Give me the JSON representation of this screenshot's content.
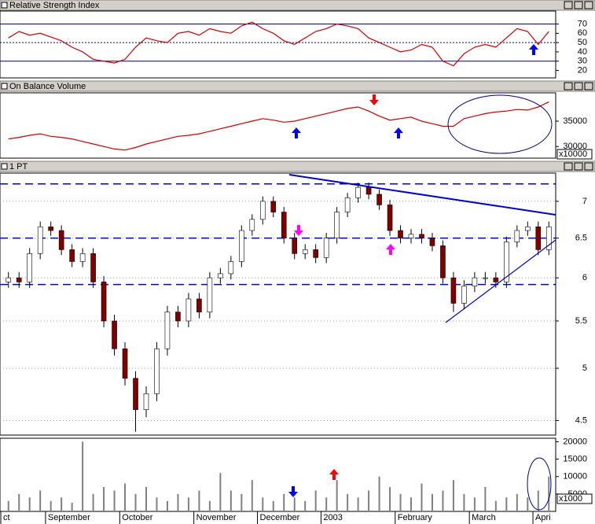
{
  "chart_data": [
    {
      "type": "line",
      "title": "Relative Strength Index",
      "color": "#cc0000",
      "values": [
        55,
        62,
        58,
        60,
        56,
        52,
        45,
        40,
        32,
        30,
        28,
        32,
        45,
        55,
        52,
        50,
        60,
        62,
        58,
        65,
        62,
        60,
        68,
        72,
        65,
        60,
        52,
        48,
        55,
        62,
        65,
        70,
        68,
        65,
        55,
        50,
        45,
        40,
        42,
        48,
        45,
        30,
        25,
        38,
        45,
        48,
        45,
        55,
        65,
        62,
        48,
        62
      ],
      "ylim": [
        12,
        84
      ],
      "yticks": [
        20,
        30,
        40,
        50,
        60,
        70
      ],
      "levels": [
        30,
        50,
        70
      ]
    },
    {
      "type": "line",
      "title": "On Balance Volume",
      "color": "#cc0000",
      "y_unit": "x10000",
      "values": [
        31500,
        31800,
        32200,
        32500,
        32000,
        31800,
        31500,
        31000,
        30500,
        30000,
        29500,
        29300,
        29800,
        30500,
        31000,
        31500,
        32000,
        32200,
        32500,
        33000,
        33500,
        34000,
        34500,
        35000,
        35500,
        35200,
        34800,
        35000,
        35500,
        36000,
        36500,
        37000,
        37500,
        37800,
        37000,
        36000,
        35200,
        35500,
        35800,
        35000,
        34500,
        34000,
        34000,
        35500,
        36000,
        36500,
        36800,
        37000,
        37300,
        37200,
        37800,
        38800
      ],
      "ylim": [
        27700,
        40600
      ],
      "yticks": [
        30000,
        35000
      ]
    },
    {
      "type": "candlestick",
      "title": "1 PT",
      "log_scale": true,
      "grid": true,
      "up_color": "#ffffff",
      "down_color": "#800000",
      "level_color": "#0000cc",
      "open": [
        5.95,
        6.0,
        5.95,
        6.3,
        6.65,
        6.6,
        6.35,
        6.2,
        6.3,
        5.95,
        5.5,
        5.2,
        4.9,
        4.6,
        4.75,
        5.2,
        5.6,
        5.5,
        5.75,
        5.6,
        6.0,
        6.05,
        6.2,
        6.6,
        6.75,
        7.0,
        6.85,
        6.5,
        6.3,
        6.35,
        6.25,
        6.5,
        6.85,
        7.05,
        7.2,
        7.1,
        6.95,
        6.6,
        6.5,
        6.55,
        6.5,
        6.4,
        6.0,
        5.7,
        5.9,
        6.0,
        6.0,
        5.95,
        6.45,
        6.6,
        6.65,
        6.35
      ],
      "high": [
        6.07,
        6.07,
        6.37,
        6.72,
        6.72,
        6.67,
        6.42,
        6.37,
        6.37,
        6.02,
        5.57,
        5.27,
        4.97,
        4.82,
        5.27,
        5.67,
        5.67,
        5.82,
        5.82,
        6.07,
        6.12,
        6.27,
        6.67,
        6.82,
        7.07,
        7.07,
        6.92,
        6.57,
        6.42,
        6.42,
        6.57,
        6.92,
        7.12,
        7.27,
        7.27,
        7.17,
        7.02,
        6.67,
        6.62,
        6.62,
        6.57,
        6.47,
        6.07,
        5.97,
        6.07,
        6.07,
        6.07,
        6.52,
        6.67,
        6.72,
        6.72,
        6.72
      ],
      "low": [
        5.88,
        5.88,
        5.88,
        6.23,
        6.53,
        6.28,
        6.13,
        6.13,
        5.88,
        5.43,
        5.13,
        4.83,
        4.4,
        4.53,
        4.68,
        5.13,
        5.43,
        5.43,
        5.53,
        5.53,
        5.93,
        5.98,
        6.13,
        6.53,
        6.68,
        6.78,
        6.43,
        6.23,
        6.23,
        6.18,
        6.18,
        6.43,
        6.78,
        6.98,
        7.03,
        6.88,
        6.53,
        6.43,
        6.43,
        6.43,
        6.33,
        5.93,
        5.6,
        5.63,
        5.83,
        5.93,
        5.88,
        5.88,
        6.38,
        6.53,
        6.28,
        6.28
      ],
      "close": [
        6.0,
        5.95,
        6.3,
        6.65,
        6.6,
        6.35,
        6.2,
        6.3,
        5.95,
        5.5,
        5.2,
        4.9,
        4.6,
        4.75,
        5.2,
        5.6,
        5.5,
        5.75,
        5.6,
        6.0,
        6.05,
        6.2,
        6.6,
        6.75,
        7.0,
        6.85,
        6.5,
        6.3,
        6.35,
        6.25,
        6.5,
        6.85,
        7.05,
        7.2,
        7.1,
        6.95,
        6.6,
        6.5,
        6.55,
        6.5,
        6.4,
        6.0,
        5.7,
        5.9,
        6.0,
        6.0,
        5.95,
        6.45,
        6.6,
        6.65,
        6.35,
        6.65
      ],
      "ylim": [
        4.37,
        7.41
      ],
      "yticks": [
        4.5,
        5.0,
        5.5,
        6.0,
        6.5,
        7.0
      ],
      "levels": [
        5.92,
        6.5,
        7.25
      ]
    },
    {
      "type": "bar",
      "color": "#808080",
      "y_unit": "x1000",
      "categories": [
        "ct",
        null,
        null,
        null,
        "September",
        null,
        null,
        null,
        null,
        null,
        null,
        "October",
        null,
        null,
        null,
        null,
        null,
        null,
        "November",
        null,
        null,
        null,
        null,
        null,
        "December",
        null,
        null,
        null,
        null,
        null,
        "2003",
        null,
        null,
        null,
        null,
        null,
        null,
        "February",
        null,
        null,
        null,
        null,
        null,
        null,
        "March",
        null,
        null,
        null,
        null,
        null,
        "Apri",
        null
      ],
      "values": [
        3000,
        5000,
        4000,
        6000,
        3000,
        4000,
        2500,
        20000,
        5000,
        7000,
        6000,
        8000,
        5000,
        7000,
        4000,
        3000,
        5000,
        4000,
        6000,
        3000,
        11000,
        6000,
        5000,
        9000,
        4000,
        3000,
        5000,
        4000,
        3000,
        6000,
        4000,
        9000,
        5000,
        4000,
        6000,
        10000,
        7000,
        5000,
        4000,
        8000,
        5000,
        6000,
        9000,
        5000,
        4000,
        7000,
        3000,
        4000,
        5000,
        4000,
        6000,
        10000
      ],
      "ylim": [
        0,
        21000
      ],
      "yticks": [
        5000,
        10000,
        15000,
        20000
      ]
    }
  ]
}
